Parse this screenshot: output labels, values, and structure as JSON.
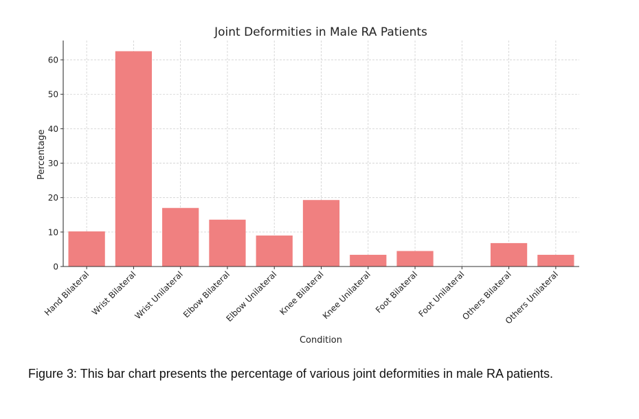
{
  "chart_data": {
    "type": "bar",
    "title": "Joint Deformities in Male RA Patients",
    "xlabel": "Condition",
    "ylabel": "Percentage",
    "categories": [
      "Hand Bilateral",
      "Wrist Bilateral",
      "Wrist Unilateral",
      "Elbow Bilateral",
      "Elbow Unilateral",
      "Knee Bilateral",
      "Knee Unilateral",
      "Foot Bilateral",
      "Foot Unilateral",
      "Others Bilateral",
      "Others Unilateral"
    ],
    "values": [
      10.2,
      62.5,
      17.0,
      13.6,
      9.0,
      19.3,
      3.4,
      4.5,
      0,
      6.8,
      3.4
    ],
    "ylim": [
      0,
      65.6
    ],
    "yticks": [
      0,
      10,
      20,
      30,
      40,
      50,
      60
    ],
    "grid": true,
    "bar_color": "#f08080"
  },
  "caption": "Figure 3: This bar chart presents the percentage of various joint deformities in male RA patients."
}
